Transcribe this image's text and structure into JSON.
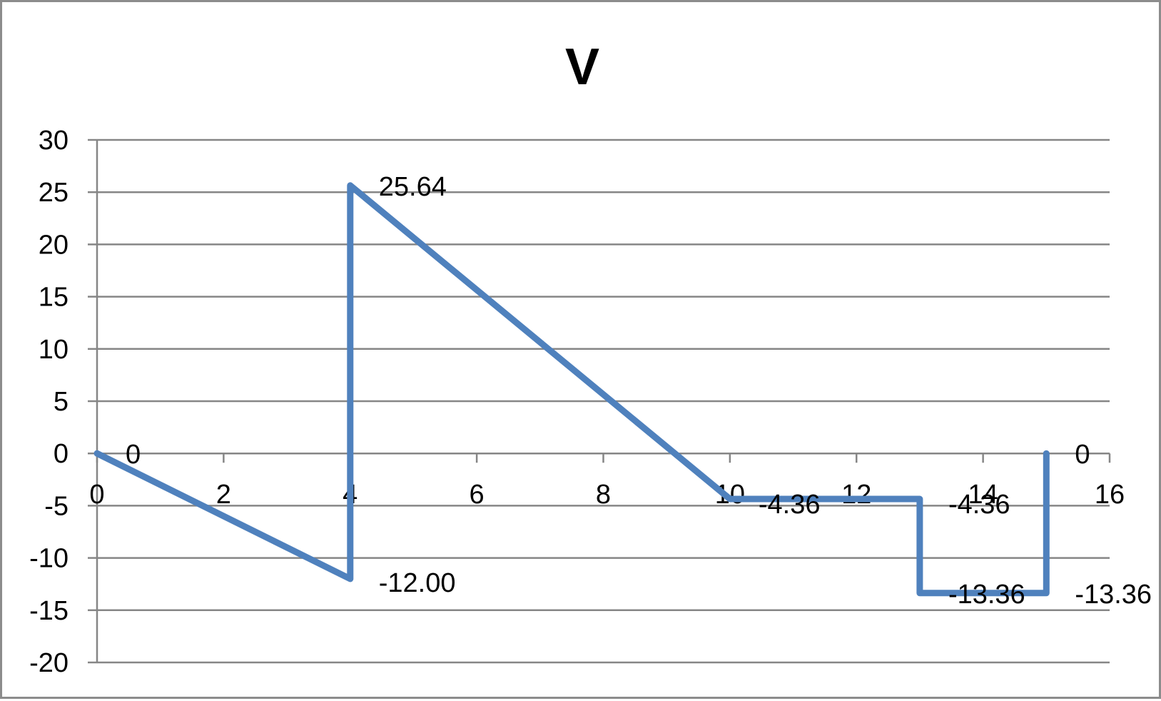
{
  "chart_data": {
    "type": "line",
    "title": "V",
    "xlabel": "",
    "ylabel": "",
    "xlim": [
      0,
      16
    ],
    "ylim": [
      -20,
      30
    ],
    "x_ticks": [
      0,
      2,
      4,
      6,
      8,
      10,
      12,
      14,
      16
    ],
    "x_tick_labels": [
      "0",
      "2",
      "4",
      "6",
      "8",
      "10",
      "12",
      "14",
      "16"
    ],
    "y_ticks": [
      30,
      25,
      20,
      15,
      10,
      5,
      0,
      -5,
      -10,
      -15,
      -20
    ],
    "y_tick_labels": [
      "30",
      "25",
      "20",
      "15",
      "10",
      "5",
      "0",
      "-5",
      "-10",
      "-15",
      "-20"
    ],
    "grid": true,
    "legend": "none",
    "series_color": "#4f81bd",
    "grid_color": "#868686",
    "series": [
      {
        "points": [
          {
            "x": 0,
            "y": 0,
            "label": "0",
            "label_pos": "right"
          },
          {
            "x": 4,
            "y": -12.0,
            "label": "-12.00",
            "label_pos": "right-below"
          },
          {
            "x": 4,
            "y": 25.64,
            "label": "25.64",
            "label_pos": "right"
          },
          {
            "x": 10,
            "y": -4.36,
            "label": "-4.36",
            "label_pos": "right-below"
          },
          {
            "x": 13,
            "y": -4.36,
            "label": "-4.36",
            "label_pos": "right-below"
          },
          {
            "x": 13,
            "y": -13.36,
            "label": "-13.36",
            "label_pos": "right"
          },
          {
            "x": 15,
            "y": -13.36,
            "label": "-13.36",
            "label_pos": "right"
          },
          {
            "x": 15,
            "y": 0,
            "label": "0",
            "label_pos": "right"
          }
        ]
      }
    ]
  }
}
